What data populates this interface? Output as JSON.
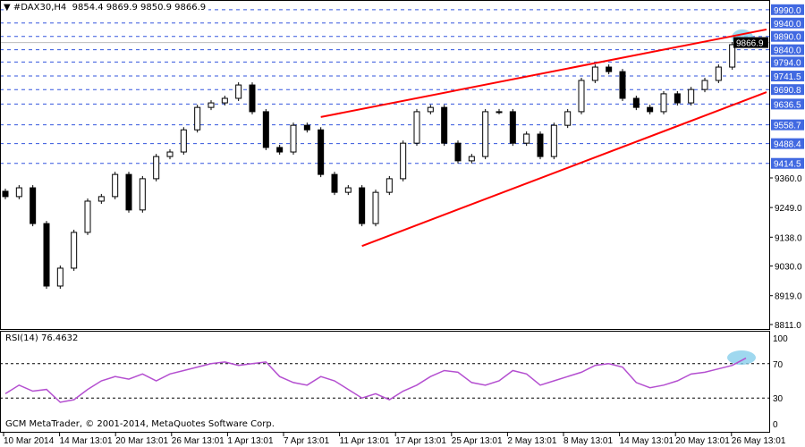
{
  "header": {
    "symbol": "#DAX30,H4",
    "ohlc": "9854.4 9869.9 9850.9 9866.9",
    "menu_icon": "triangle-down-icon"
  },
  "indicator": {
    "label": "RSI(14) 76.4632"
  },
  "footer": {
    "copyright": "GCM MetaTrader, © 2001-2014, MetaQuotes Software Corp."
  },
  "colors": {
    "level_label": "#4169e1",
    "trendline": "#ff0000",
    "rsi": "#b44fd0",
    "highlight": "#87ceeb",
    "grid": "#3355dd"
  },
  "chart_data": {
    "type": "candlestick",
    "price_axis_ticks": [
      "9360.0",
      "9249.0",
      "9138.0",
      "9030.0",
      "8919.0",
      "8811.0"
    ],
    "price_axis_hidden_ticks": [
      "9579.0",
      "9468.0"
    ],
    "levels": [
      "9990.0",
      "9940.0",
      "9890.0",
      "9840.0",
      "9794.0",
      "9741.5",
      "9690.8",
      "9636.5",
      "9558.7",
      "9488.4",
      "9414.5"
    ],
    "current_price": "9866.9",
    "ylim": [
      8811,
      9990
    ],
    "x_labels": [
      "10 Mar 2014",
      "14 Mar 13:01",
      "20 Mar 13:01",
      "26 Mar 13:01",
      "1 Apr 13:01",
      "7 Apr 13:01",
      "11 Apr 13:01",
      "17 Apr 13:01",
      "25 Apr 13:01",
      "2 May 13:01",
      "8 May 13:01",
      "14 May 13:01",
      "20 May 13:01",
      "26 May 13:01"
    ],
    "closes": [
      9290,
      9323,
      9189,
      8955,
      9022,
      9156,
      9273,
      9290,
      9373,
      9240,
      9357,
      9440,
      9457,
      9540,
      9624,
      9641,
      9658,
      9708,
      9608,
      9474,
      9457,
      9557,
      9540,
      9373,
      9306,
      9323,
      9189,
      9306,
      9357,
      9490,
      9608,
      9624,
      9490,
      9424,
      9440,
      9608,
      9608,
      9490,
      9524,
      9440,
      9557,
      9608,
      9725,
      9775,
      9758,
      9658,
      9624,
      9608,
      9675,
      9641,
      9691,
      9725,
      9775,
      9859,
      9866.9
    ],
    "trendlines": [
      {
        "from_bar": 23,
        "from_price": 9588,
        "to_bar": 55.5,
        "to_price": 9916
      },
      {
        "from_bar": 26,
        "from_price": 9105,
        "to_bar": 55.5,
        "to_price": 9681
      }
    ],
    "rsi": {
      "name": "RSI(14)",
      "levels": [
        70,
        30
      ],
      "ticks": [
        "100",
        "70",
        "30",
        "0"
      ],
      "values": [
        35,
        45,
        38,
        40,
        25,
        28,
        40,
        50,
        55,
        52,
        58,
        50,
        58,
        62,
        66,
        70,
        72,
        68,
        70,
        72,
        55,
        48,
        45,
        55,
        50,
        40,
        30,
        35,
        28,
        38,
        45,
        55,
        62,
        60,
        48,
        45,
        50,
        62,
        58,
        45,
        50,
        55,
        60,
        68,
        70,
        66,
        48,
        42,
        45,
        50,
        58,
        60,
        64,
        68,
        76.46
      ]
    }
  }
}
